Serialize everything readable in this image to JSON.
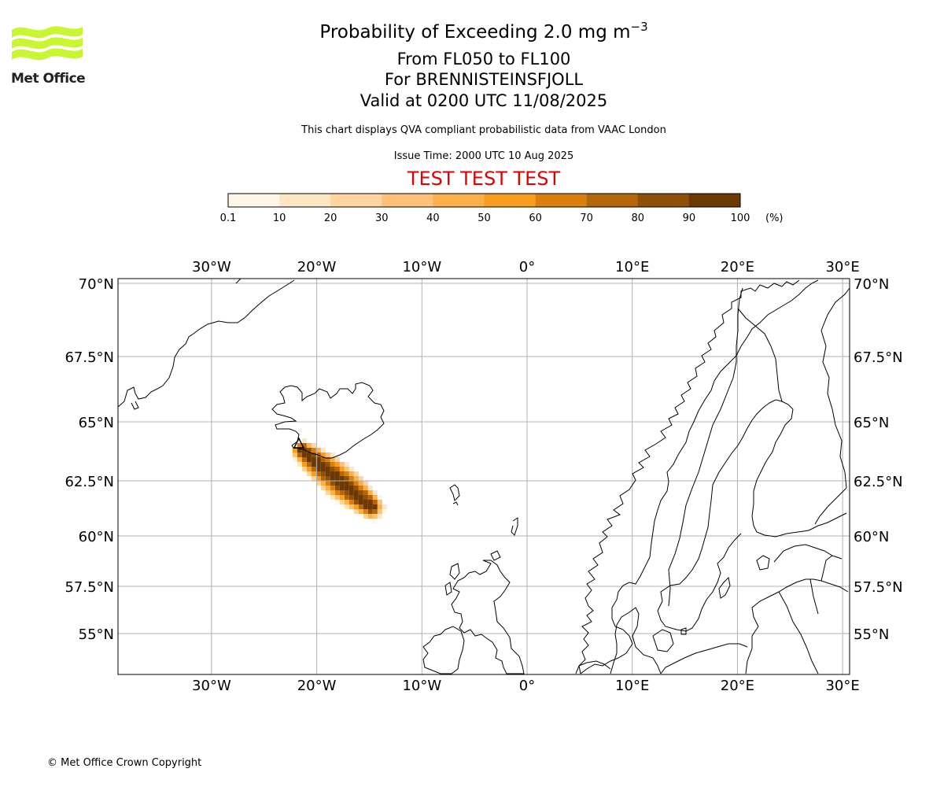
{
  "logo": {
    "text": "Met Office",
    "color": "#c8f731",
    "text_color": "#222222"
  },
  "title": {
    "main_prefix": "Probability of Exceeding 2.0 mg m",
    "main_exponent": "−3",
    "line2": "From FL050 to FL100",
    "line3": "For BRENNISTEINSFJOLL",
    "line4": "Valid at 0200 UTC 11/08/2025"
  },
  "subtitle": {
    "description": "This chart displays QVA compliant probabilistic data from VAAC London",
    "issue_time": "Issue Time: 2000 UTC 10 Aug 2025"
  },
  "test_banner": {
    "text": "TEST TEST TEST",
    "color": "#e00000"
  },
  "colorbar": {
    "unit": "(%)",
    "ticks": [
      "0.1",
      "10",
      "20",
      "30",
      "40",
      "50",
      "60",
      "70",
      "80",
      "90",
      "100"
    ],
    "colors": [
      "#fff7e6",
      "#fee6c4",
      "#fed59e",
      "#fec276",
      "#fdaf4a",
      "#f99d1e",
      "#d9800c",
      "#b56608",
      "#8e4f06",
      "#6b3a04"
    ]
  },
  "map": {
    "lon_labels_top": [
      "30°W",
      "20°W",
      "10°W",
      "0°",
      "10°E",
      "20°E",
      "30°E"
    ],
    "lon_labels_bottom": [
      "30°W",
      "20°W",
      "10°W",
      "0°",
      "10°E",
      "20°E",
      "30°E"
    ],
    "lat_labels_left": [
      "70°N",
      "67.5°N",
      "65°N",
      "62.5°N",
      "60°N",
      "57.5°N",
      "55°N"
    ],
    "lat_labels_right": [
      "70°N",
      "67.5°N",
      "65°N",
      "62.5°N",
      "60°N",
      "57.5°N",
      "55°N"
    ],
    "lon_values": [
      -30,
      -20,
      -10,
      0,
      10,
      20,
      30
    ],
    "lat_values": [
      70,
      67.5,
      65,
      62.5,
      60,
      57.5,
      55
    ],
    "lon_range": [
      -38.9,
      30.6
    ],
    "lat_range": [
      53.4,
      70.2
    ],
    "grid": true,
    "volcano": "BRENNISTEINSFJOLL",
    "plume": {
      "description_values": "probability (%) along plume axis from volcano toward south-east",
      "axis_start": {
        "lat": 63.9,
        "lon": -21.7
      },
      "axis_end": {
        "lat": 61.0,
        "lon": -14.0
      },
      "core_probability": 100,
      "edge_probability": 5
    }
  },
  "footer": {
    "copyright": "© Met Office Crown Copyright"
  }
}
